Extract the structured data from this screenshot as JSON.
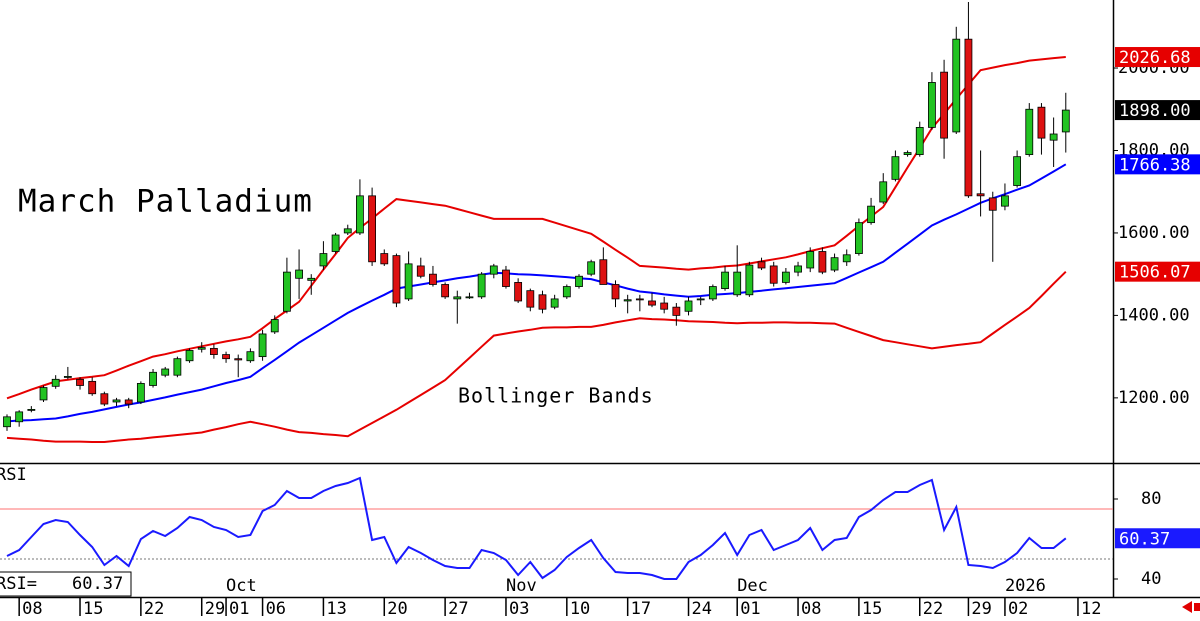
{
  "chart_data": [
    {
      "type": "candlestick",
      "title": "March Palladium",
      "annotation": "Bollinger Bands",
      "categories": [
        null,
        "08",
        null,
        null,
        null,
        null,
        "15",
        null,
        null,
        null,
        null,
        "22",
        null,
        null,
        null,
        null,
        "29",
        null,
        "01",
        null,
        null,
        "06",
        null,
        null,
        null,
        null,
        "13",
        null,
        null,
        null,
        null,
        "20",
        null,
        null,
        null,
        null,
        "27",
        null,
        null,
        null,
        null,
        "03",
        null,
        null,
        null,
        null,
        "10",
        null,
        null,
        null,
        null,
        "17",
        null,
        null,
        null,
        null,
        "24",
        null,
        null,
        null,
        "01",
        null,
        null,
        null,
        null,
        "08",
        null,
        null,
        null,
        null,
        "15",
        null,
        null,
        null,
        null,
        "22",
        null,
        null,
        null,
        "29",
        null,
        null,
        "02",
        null,
        null,
        null,
        null,
        null,
        "12"
      ],
      "month_labels": [
        null,
        null,
        null,
        null,
        null,
        null,
        null,
        null,
        null,
        null,
        null,
        null,
        null,
        null,
        null,
        null,
        null,
        null,
        "Oct",
        null,
        null,
        null,
        null,
        null,
        null,
        null,
        null,
        null,
        null,
        null,
        null,
        null,
        null,
        null,
        null,
        null,
        null,
        null,
        null,
        null,
        null,
        "Nov",
        null,
        null,
        null,
        null,
        null,
        null,
        null,
        null,
        null,
        null,
        null,
        null,
        null,
        null,
        null,
        null,
        null,
        null,
        "Dec",
        null,
        null,
        null,
        null,
        null,
        null,
        null,
        null,
        null,
        null,
        null,
        null,
        null,
        null,
        null,
        null,
        null,
        null,
        null,
        null,
        null,
        "2026",
        null,
        null,
        null,
        null,
        null,
        null
      ],
      "open": [
        1130,
        1142,
        1170,
        1195,
        1228,
        1250,
        1245,
        1240,
        1210,
        1190,
        1195,
        1190,
        1230,
        1255,
        1255,
        1290,
        1318,
        1320,
        1305,
        1295,
        1290,
        1300,
        1360,
        1410,
        1490,
        1485,
        1520,
        1555,
        1600,
        1600,
        1690,
        1550,
        1545,
        1440,
        1520,
        1500,
        1475,
        1440,
        1445,
        1445,
        1500,
        1510,
        1480,
        1460,
        1450,
        1420,
        1445,
        1470,
        1500,
        1535,
        1475,
        1435,
        1440,
        1435,
        1430,
        1420,
        1410,
        1438,
        1440,
        1465,
        1450,
        1450,
        1530,
        1520,
        1480,
        1505,
        1515,
        1555,
        1510,
        1530,
        1550,
        1625,
        1675,
        1730,
        1790,
        1790,
        1856,
        1990,
        1845,
        2070,
        1695,
        1685,
        1665,
        1715,
        1790,
        1905,
        1825,
        1845,
        null
      ],
      "high": [
        1160,
        1170,
        1180,
        1230,
        1255,
        1275,
        1250,
        1250,
        1215,
        1200,
        1200,
        1240,
        1270,
        1275,
        1300,
        1320,
        1335,
        1330,
        1312,
        1305,
        1320,
        1365,
        1400,
        1540,
        1560,
        1500,
        1580,
        1600,
        1620,
        1730,
        1710,
        1560,
        1550,
        1555,
        1540,
        1520,
        1480,
        1460,
        1455,
        1505,
        1525,
        1520,
        1490,
        1465,
        1460,
        1450,
        1475,
        1500,
        1535,
        1565,
        1485,
        1450,
        1450,
        1455,
        1445,
        1430,
        1445,
        1445,
        1475,
        1520,
        1570,
        1530,
        1540,
        1530,
        1515,
        1530,
        1565,
        1565,
        1550,
        1560,
        1635,
        1685,
        1745,
        1800,
        1800,
        1870,
        1990,
        2020,
        2100,
        2160,
        1800,
        1700,
        1720,
        1800,
        1915,
        1915,
        1880,
        1940,
        null
      ],
      "low": [
        1120,
        1130,
        1165,
        1190,
        1222,
        1245,
        1220,
        1205,
        1180,
        1180,
        1175,
        1185,
        1225,
        1250,
        1250,
        1285,
        1310,
        1295,
        1285,
        1250,
        1285,
        1290,
        1355,
        1405,
        1440,
        1450,
        1510,
        1550,
        1595,
        1595,
        1520,
        1520,
        1420,
        1435,
        1490,
        1470,
        1440,
        1380,
        1440,
        1440,
        1490,
        1465,
        1430,
        1410,
        1405,
        1415,
        1440,
        1465,
        1495,
        1475,
        1420,
        1405,
        1410,
        1420,
        1405,
        1375,
        1400,
        1425,
        1435,
        1460,
        1445,
        1445,
        1510,
        1470,
        1475,
        1495,
        1505,
        1500,
        1505,
        1520,
        1545,
        1620,
        1670,
        1725,
        1785,
        1785,
        1850,
        1780,
        1840,
        1685,
        1640,
        1530,
        1655,
        1710,
        1785,
        1790,
        1760,
        1795,
        null
      ],
      "close": [
        1154,
        1166,
        1172,
        1225,
        1245,
        1252,
        1230,
        1210,
        1185,
        1195,
        1185,
        1235,
        1262,
        1270,
        1295,
        1315,
        1322,
        1305,
        1295,
        1292,
        1312,
        1355,
        1390,
        1505,
        1510,
        1490,
        1550,
        1595,
        1610,
        1690,
        1530,
        1525,
        1430,
        1525,
        1495,
        1475,
        1445,
        1445,
        1445,
        1500,
        1520,
        1470,
        1435,
        1420,
        1415,
        1440,
        1470,
        1495,
        1530,
        1475,
        1440,
        1438,
        1438,
        1425,
        1415,
        1400,
        1435,
        1440,
        1470,
        1505,
        1505,
        1522,
        1515,
        1478,
        1505,
        1520,
        1555,
        1505,
        1540,
        1547,
        1625,
        1665,
        1724,
        1785,
        1795,
        1856,
        1965,
        1830,
        2070,
        1690,
        1690,
        1655,
        1690,
        1785,
        1900,
        1830,
        1840,
        1898,
        null
      ],
      "last_close_label": "1898.00",
      "up_color": "#22c322",
      "down_color": "#dd1111",
      "label_color": "#000000",
      "series": [
        {
          "color": "#e60000",
          "values": [
            1199,
            1209,
            1220,
            1230,
            1240,
            1244,
            1248,
            1251,
            1255,
            1266,
            1278,
            1289,
            1300,
            1306,
            1313,
            1319,
            1325,
            1331,
            1337,
            1342,
            1348,
            1369,
            1391,
            1412,
            1433,
            1472,
            1511,
            1549,
            1588,
            1612,
            1635,
            1659,
            1682,
            1678,
            1674,
            1670,
            1666,
            1658,
            1650,
            1642,
            1634,
            1634,
            1634,
            1634,
            1634,
            1625,
            1616,
            1607,
            1598,
            1579,
            1559,
            1540,
            1520,
            1518,
            1516,
            1513,
            1511,
            1514,
            1516,
            1519,
            1521,
            1526,
            1531,
            1536,
            1541,
            1548,
            1556,
            1563,
            1570,
            1593,
            1617,
            1640,
            1663,
            1711,
            1759,
            1806,
            1854,
            1889,
            1925,
            1960,
            1995,
            2001,
            2007,
            2012,
            2018,
            2021,
            2024,
            2026.68,
            null
          ],
          "value_labels": [
            null,
            null,
            null,
            null,
            null,
            null,
            null,
            null,
            null,
            null,
            null,
            null,
            null,
            null,
            null,
            null,
            null,
            null,
            null,
            null,
            null,
            null,
            null,
            null,
            null,
            null,
            null,
            null,
            null,
            null,
            null,
            null,
            null,
            null,
            null,
            null,
            null,
            null,
            null,
            null,
            null,
            null,
            null,
            null,
            null,
            null,
            null,
            null,
            null,
            null,
            null,
            null,
            null,
            null,
            null,
            null,
            null,
            null,
            null,
            null,
            null,
            null,
            null,
            null,
            null,
            null,
            null,
            null,
            null,
            null,
            null,
            null,
            null,
            null,
            null,
            null,
            null,
            null,
            null,
            null,
            null,
            null,
            null,
            null,
            null,
            null,
            null,
            "2026.68",
            null
          ]
        },
        {
          "color": "#0000ff",
          "values": [
            1143,
            1145,
            1146,
            1148,
            1150,
            1155,
            1161,
            1166,
            1172,
            1178,
            1184,
            1189,
            1195,
            1201,
            1208,
            1214,
            1220,
            1228,
            1236,
            1243,
            1251,
            1272,
            1292,
            1313,
            1334,
            1352,
            1370,
            1388,
            1406,
            1421,
            1436,
            1450,
            1465,
            1470,
            1475,
            1480,
            1485,
            1490,
            1494,
            1499,
            1503,
            1502,
            1500,
            1499,
            1497,
            1495,
            1493,
            1490,
            1488,
            1480,
            1473,
            1465,
            1458,
            1455,
            1451,
            1448,
            1445,
            1447,
            1450,
            1452,
            1454,
            1457,
            1460,
            1463,
            1466,
            1469,
            1472,
            1475,
            1478,
            1491,
            1504,
            1517,
            1530,
            1552,
            1574,
            1596,
            1618,
            1632,
            1645,
            1659,
            1673,
            1684,
            1694,
            1705,
            1715,
            1732,
            1749,
            1766.38,
            null
          ],
          "value_labels": [
            null,
            null,
            null,
            null,
            null,
            null,
            null,
            null,
            null,
            null,
            null,
            null,
            null,
            null,
            null,
            null,
            null,
            null,
            null,
            null,
            null,
            null,
            null,
            null,
            null,
            null,
            null,
            null,
            null,
            null,
            null,
            null,
            null,
            null,
            null,
            null,
            null,
            null,
            null,
            null,
            null,
            null,
            null,
            null,
            null,
            null,
            null,
            null,
            null,
            null,
            null,
            null,
            null,
            null,
            null,
            null,
            null,
            null,
            null,
            null,
            null,
            null,
            null,
            null,
            null,
            null,
            null,
            null,
            null,
            null,
            null,
            null,
            null,
            null,
            null,
            null,
            null,
            null,
            null,
            null,
            null,
            null,
            null,
            null,
            null,
            null,
            null,
            "1766.38",
            null
          ]
        },
        {
          "color": "#e60000",
          "values": [
            1103,
            1101,
            1099,
            1096,
            1094,
            1094,
            1094,
            1093,
            1093,
            1096,
            1099,
            1101,
            1104,
            1107,
            1110,
            1113,
            1116,
            1123,
            1129,
            1136,
            1142,
            1136,
            1130,
            1123,
            1117,
            1115,
            1112,
            1110,
            1107,
            1123,
            1139,
            1155,
            1171,
            1189,
            1207,
            1225,
            1243,
            1270,
            1297,
            1324,
            1351,
            1356,
            1361,
            1365,
            1370,
            1371,
            1371,
            1372,
            1372,
            1377,
            1383,
            1388,
            1393,
            1391,
            1390,
            1388,
            1386,
            1385,
            1384,
            1382,
            1381,
            1382,
            1382,
            1383,
            1383,
            1382,
            1382,
            1381,
            1380,
            1370,
            1360,
            1350,
            1340,
            1335,
            1330,
            1325,
            1320,
            1324,
            1328,
            1331,
            1335,
            1356,
            1377,
            1397,
            1418,
            1447,
            1477,
            1506.07,
            null
          ],
          "value_labels": [
            null,
            null,
            null,
            null,
            null,
            null,
            null,
            null,
            null,
            null,
            null,
            null,
            null,
            null,
            null,
            null,
            null,
            null,
            null,
            null,
            null,
            null,
            null,
            null,
            null,
            null,
            null,
            null,
            null,
            null,
            null,
            null,
            null,
            null,
            null,
            null,
            null,
            null,
            null,
            null,
            null,
            null,
            null,
            null,
            null,
            null,
            null,
            null,
            null,
            null,
            null,
            null,
            null,
            null,
            null,
            null,
            null,
            null,
            null,
            null,
            null,
            null,
            null,
            null,
            null,
            null,
            null,
            null,
            null,
            null,
            null,
            null,
            null,
            null,
            null,
            null,
            null,
            null,
            null,
            null,
            null,
            null,
            null,
            null,
            null,
            null,
            null,
            "1506.07",
            null
          ]
        }
      ],
      "ylim": [
        1042,
        2165
      ],
      "yticks": [
        {
          "value": 1200,
          "label": "1200.00"
        },
        {
          "value": 1400,
          "label": "1400.00"
        },
        {
          "value": 1600,
          "label": "1600.00"
        },
        {
          "value": 1800,
          "label": "1800.00"
        },
        {
          "value": 2000,
          "label": "2000.00"
        }
      ]
    },
    {
      "type": "line",
      "title": "RSI",
      "label": "RSI=",
      "color": "#1a1aff",
      "values": [
        51.5,
        54.5,
        61,
        67.5,
        69.5,
        68.5,
        62,
        56,
        47,
        51.5,
        46.5,
        60,
        64,
        61.5,
        65.5,
        71,
        69.5,
        66,
        64.5,
        61,
        62,
        74,
        77,
        84,
        80.5,
        80.5,
        84,
        86.5,
        88,
        90.5,
        59.5,
        61,
        48,
        56,
        53,
        49.5,
        46.5,
        45.5,
        45.5,
        54.5,
        53,
        49.5,
        42,
        48.5,
        40.5,
        44.5,
        51,
        55.5,
        59.5,
        50.5,
        43.5,
        43,
        43,
        42,
        40,
        40,
        48.5,
        52,
        57,
        63,
        52,
        62,
        64.5,
        54.5,
        57,
        59.5,
        65.5,
        54.5,
        59.5,
        60.5,
        71,
        74.5,
        79.5,
        83.5,
        83.5,
        87,
        89.5,
        64.5,
        76,
        47,
        46.5,
        45.5,
        48.5,
        53,
        60.5,
        55.5,
        55.5,
        60.37,
        null
      ],
      "levels": [
        75,
        50
      ],
      "level_colors": [
        "#ff7070",
        "#777777"
      ],
      "ylim": [
        31,
        98
      ],
      "yticks": [
        40,
        80
      ]
    }
  ]
}
